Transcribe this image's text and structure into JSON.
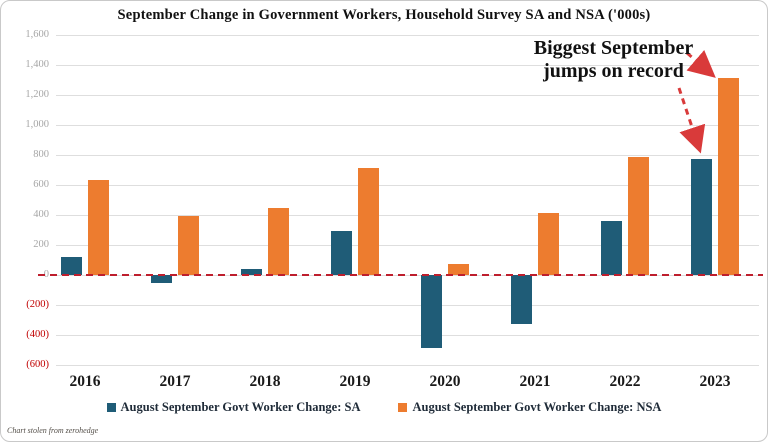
{
  "window": {
    "title": "September Change in Government Workers, Household Survey SA and NSA ('000s)"
  },
  "chart_data": {
    "type": "bar",
    "title": "September Change in Government Workers, Household Survey SA and NSA ('000s)",
    "categories": [
      "2016",
      "2017",
      "2018",
      "2019",
      "2020",
      "2021",
      "2022",
      "2023"
    ],
    "series": [
      {
        "name": "August September Govt Worker Change: SA",
        "color": "#1f5c77",
        "values": [
          120,
          -55,
          40,
          295,
          -490,
          -330,
          360,
          775
        ]
      },
      {
        "name": "August September Govt Worker Change: NSA",
        "color": "#ed7c2f",
        "values": [
          635,
          390,
          445,
          715,
          70,
          415,
          785,
          1310
        ]
      }
    ],
    "ylim": [
      -600,
      1600
    ],
    "ytick_step": 200,
    "ytick_labels": [
      "1,600",
      "1,400",
      "1,200",
      "1,000",
      "800",
      "600",
      "400",
      "200",
      "0",
      "(200)",
      "(400)",
      "(600)"
    ],
    "negative_tick_style": "parentheses-red",
    "grid": true,
    "legend_position": "bottom",
    "zero_line": {
      "style": "dashed",
      "color": "#be1e2d"
    },
    "annotation": {
      "line1": "Biggest September",
      "line2": "jumps on record",
      "arrow_color": "#d93a3a"
    }
  },
  "footer": {
    "credit": "Chart stolen from zerohedge"
  },
  "colors": {
    "sa_bar": "#1f5c77",
    "nsa_bar": "#ed7c2f",
    "gridline": "#dedede",
    "tick_gray": "#a6a6a6",
    "negative_red": "#c00000"
  }
}
